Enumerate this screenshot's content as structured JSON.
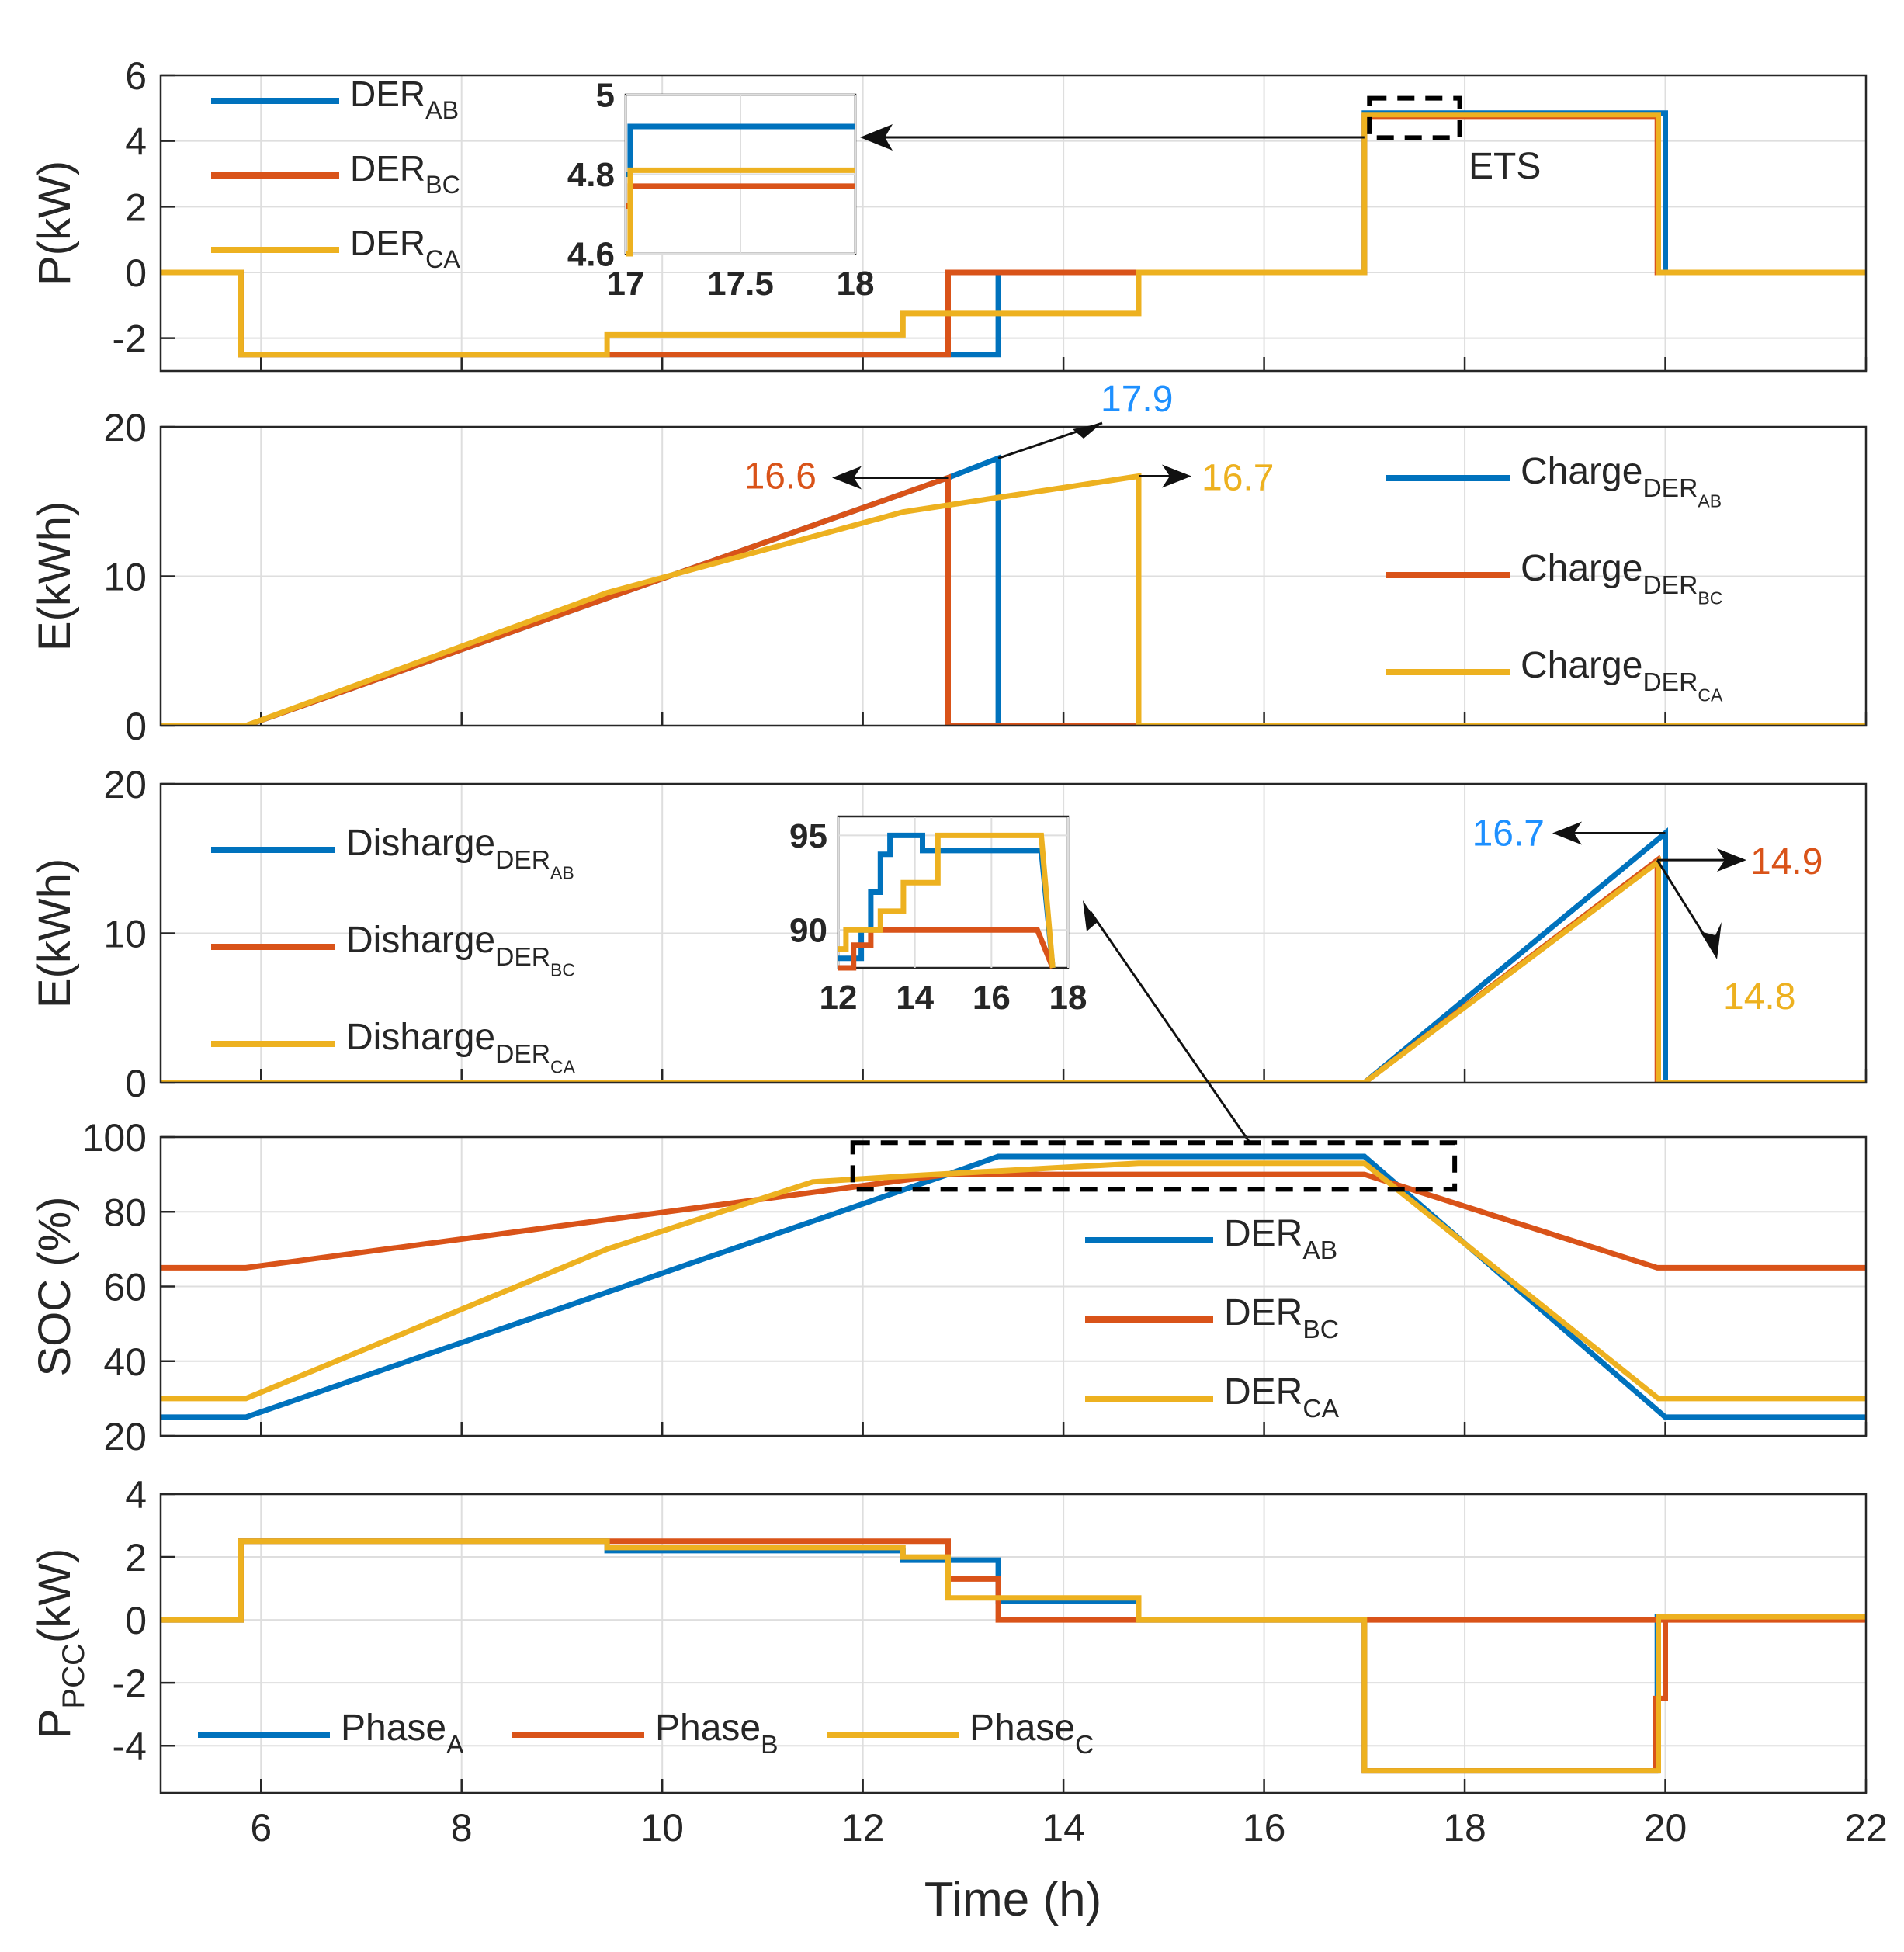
{
  "colors": {
    "ab": "#0072BD",
    "bc": "#D95319",
    "ca": "#EDB120",
    "grid": "#dedede",
    "axis": "#262626"
  },
  "shared_x": {
    "label": "Time (h)",
    "range": [
      5,
      22
    ],
    "ticks": [
      "6",
      "8",
      "10",
      "12",
      "14",
      "16",
      "18",
      "20",
      "22"
    ]
  },
  "chart_data": [
    {
      "type": "line",
      "id": "p1",
      "ylabel": {
        "main": "P(kW)"
      },
      "ylim": [
        -3,
        6
      ],
      "yticks": [
        "-2",
        "0",
        "2",
        "4",
        "6"
      ],
      "legend": {
        "position": "top-left",
        "entries": [
          {
            "main": "DER",
            "sub": "AB"
          },
          {
            "main": "DER",
            "sub": "BC"
          },
          {
            "main": "DER",
            "sub": "CA"
          }
        ]
      },
      "series": [
        {
          "name": "DER_AB",
          "color": "ab",
          "points": [
            [
              5,
              0
            ],
            [
              5.8,
              0
            ],
            [
              5.8,
              -2.5
            ],
            [
              13.35,
              -2.5
            ],
            [
              13.35,
              0
            ],
            [
              17,
              0
            ],
            [
              17,
              4.85
            ],
            [
              20,
              4.85
            ],
            [
              20,
              0
            ],
            [
              22,
              0
            ]
          ]
        },
        {
          "name": "DER_BC",
          "color": "bc",
          "points": [
            [
              5,
              0
            ],
            [
              5.8,
              0
            ],
            [
              5.8,
              -2.5
            ],
            [
              12.85,
              -2.5
            ],
            [
              12.85,
              0
            ],
            [
              17,
              0
            ],
            [
              17,
              4.75
            ],
            [
              19.92,
              4.75
            ],
            [
              19.92,
              0
            ],
            [
              22,
              0
            ]
          ]
        },
        {
          "name": "DER_CA",
          "color": "ca",
          "points": [
            [
              5,
              0
            ],
            [
              5.8,
              0
            ],
            [
              5.8,
              -2.5
            ],
            [
              9.45,
              -2.5
            ],
            [
              9.45,
              -1.9
            ],
            [
              12.4,
              -1.9
            ],
            [
              12.4,
              -1.25
            ],
            [
              14.75,
              -1.25
            ],
            [
              14.75,
              0
            ],
            [
              17,
              0
            ],
            [
              17,
              4.8
            ],
            [
              19.93,
              4.8
            ],
            [
              19.93,
              0
            ],
            [
              22,
              0
            ]
          ]
        }
      ],
      "annotation": "ETS",
      "inset": {
        "xlim": [
          17,
          18
        ],
        "ylim": [
          4.6,
          5
        ],
        "xticks": [
          "17",
          "17.5",
          "18"
        ],
        "yticks": [
          "4.6",
          "4.8",
          "5"
        ],
        "series": [
          {
            "name": "DER_AB",
            "color": "ab",
            "points": [
              [
                17,
                4.8
              ],
              [
                17.02,
                4.8
              ],
              [
                17.02,
                4.92
              ],
              [
                18,
                4.92
              ]
            ]
          },
          {
            "name": "DER_BC",
            "color": "bc",
            "points": [
              [
                17,
                4.72
              ],
              [
                17.02,
                4.72
              ],
              [
                17.02,
                4.77
              ],
              [
                18,
                4.77
              ]
            ]
          },
          {
            "name": "DER_CA",
            "color": "ca",
            "points": [
              [
                17,
                4.6
              ],
              [
                17.02,
                4.6
              ],
              [
                17.02,
                4.81
              ],
              [
                18,
                4.81
              ]
            ]
          }
        ]
      }
    },
    {
      "type": "line",
      "id": "p2",
      "ylabel": {
        "main": "E(kWh)"
      },
      "ylim": [
        0,
        20
      ],
      "yticks": [
        "0",
        "10",
        "20"
      ],
      "legend": {
        "position": "top-right",
        "entries": [
          {
            "main": "Charge",
            "sub": "DER",
            "subsub": "AB"
          },
          {
            "main": "Charge",
            "sub": "DER",
            "subsub": "BC"
          },
          {
            "main": "Charge",
            "sub": "DER",
            "subsub": "CA"
          }
        ]
      },
      "series": [
        {
          "name": "Charge_DER_AB",
          "color": "ab",
          "points": [
            [
              5,
              0
            ],
            [
              5.85,
              0
            ],
            [
              12.85,
              16.6
            ],
            [
              13.35,
              17.9
            ],
            [
              13.35,
              0
            ],
            [
              22,
              0
            ]
          ]
        },
        {
          "name": "Charge_DER_BC",
          "color": "bc",
          "points": [
            [
              5,
              0
            ],
            [
              5.85,
              0
            ],
            [
              12.85,
              16.6
            ],
            [
              12.85,
              0
            ],
            [
              22,
              0
            ]
          ]
        },
        {
          "name": "Charge_DER_CA",
          "color": "ca",
          "points": [
            [
              5,
              0
            ],
            [
              5.85,
              0
            ],
            [
              9.45,
              8.9
            ],
            [
              12.4,
              14.3
            ],
            [
              14.75,
              16.7
            ],
            [
              14.75,
              0
            ],
            [
              22,
              0
            ]
          ]
        }
      ],
      "labels": [
        "17.9",
        "16.6",
        "16.7"
      ]
    },
    {
      "type": "line",
      "id": "p3",
      "ylabel": {
        "main": "E(kWh)"
      },
      "ylim": [
        0,
        20
      ],
      "yticks": [
        "0",
        "10",
        "20"
      ],
      "legend": {
        "position": "top-left",
        "entries": [
          {
            "main": "Disharge",
            "sub": "DER",
            "subsub": "AB"
          },
          {
            "main": "Disharge",
            "sub": "DER",
            "subsub": "BC"
          },
          {
            "main": "Disharge",
            "sub": "DER",
            "subsub": "CA"
          }
        ]
      },
      "series": [
        {
          "name": "Disharge_DER_AB",
          "color": "ab",
          "points": [
            [
              5,
              0
            ],
            [
              17,
              0
            ],
            [
              20,
              16.7
            ],
            [
              20,
              0
            ],
            [
              22,
              0
            ]
          ]
        },
        {
          "name": "Disharge_DER_BC",
          "color": "bc",
          "points": [
            [
              5,
              0
            ],
            [
              17,
              0
            ],
            [
              19.92,
              14.9
            ],
            [
              19.92,
              0
            ],
            [
              22,
              0
            ]
          ]
        },
        {
          "name": "Disharge_DER_CA",
          "color": "ca",
          "points": [
            [
              5,
              0
            ],
            [
              17,
              0
            ],
            [
              19.93,
              14.8
            ],
            [
              19.93,
              0
            ],
            [
              22,
              0
            ]
          ]
        }
      ],
      "labels": [
        "16.7",
        "14.9",
        "14.8"
      ],
      "inset": {
        "xlim": [
          12,
          18
        ],
        "ylim": [
          88,
          96
        ],
        "xticks": [
          "12",
          "14",
          "16",
          "18"
        ],
        "yticks": [
          "90",
          "95"
        ],
        "series": [
          {
            "name": "DER_AB",
            "color": "ab",
            "points": [
              [
                12,
                88.5
              ],
              [
                12.6,
                88.5
              ],
              [
                12.6,
                90
              ],
              [
                12.85,
                90
              ],
              [
                12.85,
                92
              ],
              [
                13.1,
                92
              ],
              [
                13.1,
                94
              ],
              [
                13.35,
                94
              ],
              [
                13.35,
                95
              ],
              [
                14.2,
                95
              ],
              [
                14.2,
                94.2
              ],
              [
                17.3,
                94.2
              ],
              [
                17.6,
                88
              ]
            ]
          },
          {
            "name": "DER_BC",
            "color": "bc",
            "points": [
              [
                12,
                88
              ],
              [
                12.4,
                88
              ],
              [
                12.4,
                89.2
              ],
              [
                12.85,
                89.2
              ],
              [
                12.85,
                90
              ],
              [
                17.2,
                90
              ],
              [
                17.6,
                88
              ]
            ]
          },
          {
            "name": "DER_CA",
            "color": "ca",
            "points": [
              [
                12,
                89
              ],
              [
                12.2,
                89
              ],
              [
                12.2,
                90
              ],
              [
                13.1,
                90
              ],
              [
                13.1,
                91
              ],
              [
                13.7,
                91
              ],
              [
                13.7,
                92.5
              ],
              [
                14.6,
                92.5
              ],
              [
                14.6,
                95
              ],
              [
                17.3,
                95
              ],
              [
                17.6,
                88
              ]
            ]
          }
        ]
      }
    },
    {
      "type": "line",
      "id": "p4",
      "ylabel": {
        "main": "SOC (%)"
      },
      "ylim": [
        20,
        100
      ],
      "yticks": [
        "20",
        "40",
        "60",
        "80",
        "100"
      ],
      "legend": {
        "position": "center-right",
        "entries": [
          {
            "main": "DER",
            "sub": "AB"
          },
          {
            "main": "DER",
            "sub": "BC"
          },
          {
            "main": "DER",
            "sub": "CA"
          }
        ]
      },
      "series": [
        {
          "name": "DER_AB",
          "color": "ab",
          "points": [
            [
              5,
              25
            ],
            [
              5.85,
              25
            ],
            [
              12.85,
              90
            ],
            [
              13.35,
              94.8
            ],
            [
              17,
              94.8
            ],
            [
              20,
              25
            ],
            [
              22,
              25
            ]
          ]
        },
        {
          "name": "DER_BC",
          "color": "bc",
          "points": [
            [
              5,
              65
            ],
            [
              5.85,
              65
            ],
            [
              12.85,
              90
            ],
            [
              17,
              90
            ],
            [
              19.92,
              65
            ],
            [
              22,
              65
            ]
          ]
        },
        {
          "name": "DER_CA",
          "color": "ca",
          "points": [
            [
              5,
              30
            ],
            [
              5.85,
              30
            ],
            [
              9.45,
              70
            ],
            [
              11.5,
              88
            ],
            [
              12.4,
              89.5
            ],
            [
              14.75,
              93
            ],
            [
              17,
              93
            ],
            [
              19.93,
              30
            ],
            [
              22,
              30
            ]
          ]
        }
      ]
    },
    {
      "type": "line",
      "id": "p5",
      "ylabel": {
        "main": "P",
        "sub": "PCC",
        "tail": "(kW)"
      },
      "ylim": [
        -5.5,
        4
      ],
      "yticks": [
        "-4",
        "-2",
        "0",
        "2",
        "4"
      ],
      "legend": {
        "position": "bottom-left",
        "entries": [
          {
            "main": "Phase",
            "sub": "A"
          },
          {
            "main": "Phase",
            "sub": "B"
          },
          {
            "main": "Phase",
            "sub": "C"
          }
        ]
      },
      "series": [
        {
          "name": "Phase_A",
          "color": "ab",
          "points": [
            [
              5,
              0
            ],
            [
              5.8,
              0
            ],
            [
              5.8,
              2.5
            ],
            [
              9.45,
              2.5
            ],
            [
              9.45,
              2.2
            ],
            [
              12.4,
              2.2
            ],
            [
              12.4,
              1.9
            ],
            [
              13.35,
              1.9
            ],
            [
              13.35,
              0.6
            ],
            [
              14.75,
              0.6
            ],
            [
              14.75,
              0
            ],
            [
              17,
              0
            ],
            [
              17,
              -4.8
            ],
            [
              19.92,
              -4.8
            ],
            [
              19.92,
              0.1
            ],
            [
              22,
              0.1
            ]
          ]
        },
        {
          "name": "Phase_B",
          "color": "bc",
          "points": [
            [
              5,
              0
            ],
            [
              5.8,
              0
            ],
            [
              5.8,
              2.5
            ],
            [
              12.85,
              2.5
            ],
            [
              12.85,
              1.3
            ],
            [
              13.35,
              1.3
            ],
            [
              13.35,
              0
            ],
            [
              22,
              0
            ],
            [
              17,
              0
            ],
            [
              17,
              -4.8
            ],
            [
              19.9,
              -4.8
            ],
            [
              19.9,
              -2.5
            ],
            [
              20,
              -2.5
            ],
            [
              20,
              0.1
            ],
            [
              22,
              0.1
            ]
          ]
        },
        {
          "name": "Phase_C",
          "color": "ca",
          "points": [
            [
              5,
              0
            ],
            [
              5.8,
              0
            ],
            [
              5.8,
              2.5
            ],
            [
              9.45,
              2.5
            ],
            [
              9.45,
              2.3
            ],
            [
              12.4,
              2.3
            ],
            [
              12.4,
              2.0
            ],
            [
              12.85,
              2.0
            ],
            [
              12.85,
              0.7
            ],
            [
              14.75,
              0.7
            ],
            [
              14.75,
              0
            ],
            [
              17,
              0
            ],
            [
              17,
              -4.8
            ],
            [
              19.93,
              -4.8
            ],
            [
              19.93,
              0.1
            ],
            [
              22,
              0.1
            ]
          ]
        }
      ]
    }
  ]
}
